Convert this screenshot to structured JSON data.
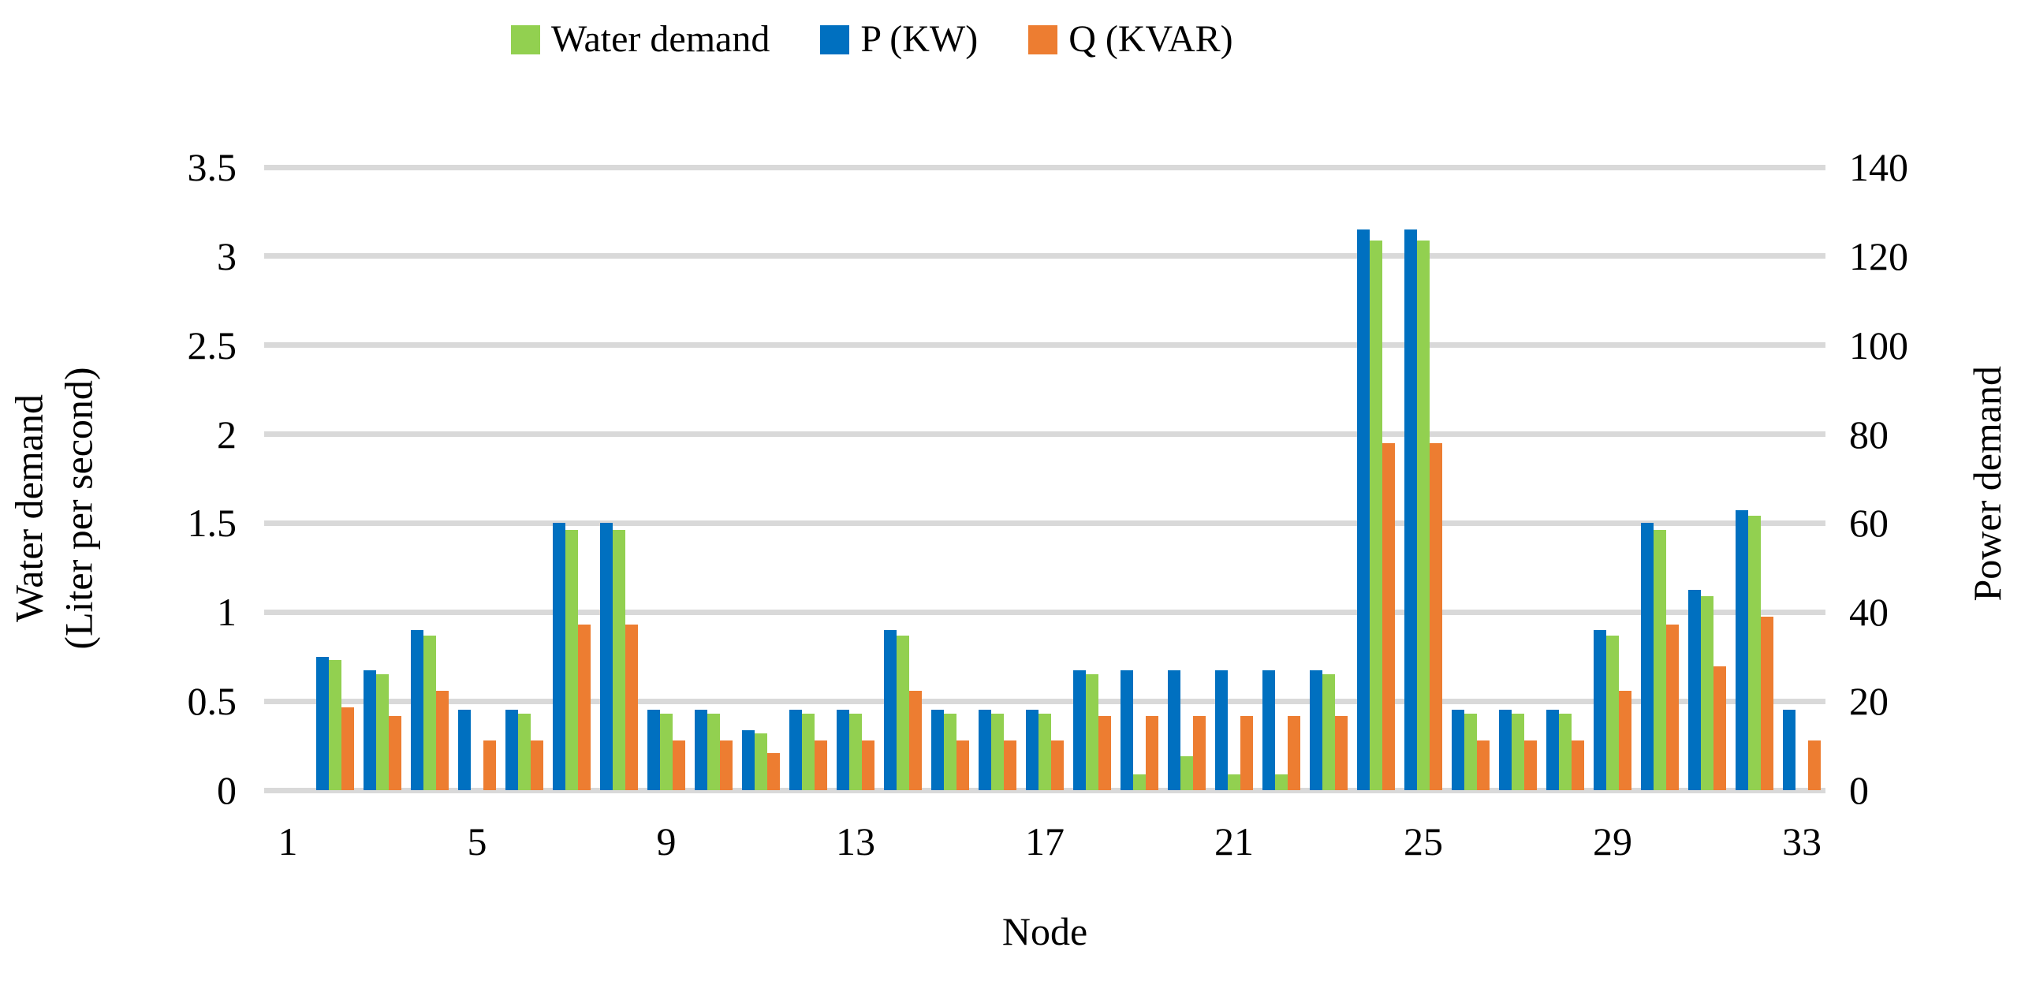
{
  "legend": [
    {
      "id": "water-demand",
      "label": "Water demand",
      "color": "#92D050"
    },
    {
      "id": "p-kw",
      "label": "P (KW)",
      "color": "#0070C0"
    },
    {
      "id": "q-kvar",
      "label": "Q (KVAR)",
      "color": "#ED7D31"
    }
  ],
  "chart_data": {
    "type": "bar",
    "title": "",
    "xlabel": "Node",
    "ylabel_left_lines": [
      "Water demand",
      "(Liter per second)"
    ],
    "ylabel_right": "Power demand",
    "grid": true,
    "gridline_color": "#d9d9d9",
    "legend_position": "top",
    "categories": [
      1,
      2,
      3,
      4,
      5,
      6,
      7,
      8,
      9,
      10,
      11,
      12,
      13,
      14,
      15,
      16,
      17,
      18,
      19,
      20,
      21,
      22,
      23,
      24,
      25,
      26,
      27,
      28,
      29,
      30,
      31,
      32,
      33
    ],
    "x_ticks_shown": [
      1,
      5,
      9,
      13,
      17,
      21,
      25,
      29,
      33
    ],
    "ylim_left": [
      0,
      3.5
    ],
    "ytick_labels_left": [
      "0",
      "0.5",
      "1",
      "1.5",
      "2",
      "2.5",
      "3",
      "3.5"
    ],
    "yticks_left": [
      0,
      0.5,
      1,
      1.5,
      2,
      2.5,
      3,
      3.5
    ],
    "ylim_right": [
      0,
      140
    ],
    "ytick_labels_right": [
      "0",
      "20",
      "40",
      "60",
      "80",
      "100",
      "120",
      "140"
    ],
    "yticks_right": [
      0,
      20,
      40,
      60,
      80,
      100,
      120,
      140
    ],
    "cluster_order": [
      1,
      0,
      2
    ],
    "series": [
      {
        "name": "Water demand",
        "axis": "left",
        "unit": "Liter per second",
        "color": "#92D050",
        "values": [
          0,
          0.73,
          0.65,
          0.87,
          0,
          0.43,
          1.46,
          1.46,
          0.43,
          0.43,
          0.32,
          0.43,
          0.43,
          0.87,
          0.43,
          0.43,
          0.43,
          0.65,
          0.09,
          0.19,
          0.09,
          0.09,
          0.65,
          3.09,
          3.09,
          0.43,
          0.43,
          0.43,
          0.87,
          1.46,
          1.09,
          1.54,
          0
        ]
      },
      {
        "name": "P (KW)",
        "axis": "right",
        "unit": "KW",
        "color": "#0070C0",
        "values": [
          0,
          30,
          27,
          36,
          18,
          18,
          60,
          60,
          18,
          18,
          13.5,
          18,
          18,
          36,
          18,
          18,
          18,
          27,
          27,
          27,
          27,
          27,
          27,
          126,
          126,
          18,
          18,
          18,
          36,
          60,
          45,
          63,
          18
        ]
      },
      {
        "name": "Q (KVAR)",
        "axis": "right",
        "unit": "KVAR",
        "color": "#ED7D31",
        "values": [
          0,
          18.6,
          16.7,
          22.3,
          11.2,
          11.2,
          37.2,
          37.2,
          11.2,
          11.2,
          8.4,
          11.2,
          11.2,
          22.3,
          11.2,
          11.2,
          11.2,
          16.7,
          16.7,
          16.7,
          16.7,
          16.7,
          16.7,
          78,
          78,
          11.2,
          11.2,
          11.2,
          22.3,
          37.2,
          27.9,
          39,
          11.2
        ]
      }
    ]
  }
}
